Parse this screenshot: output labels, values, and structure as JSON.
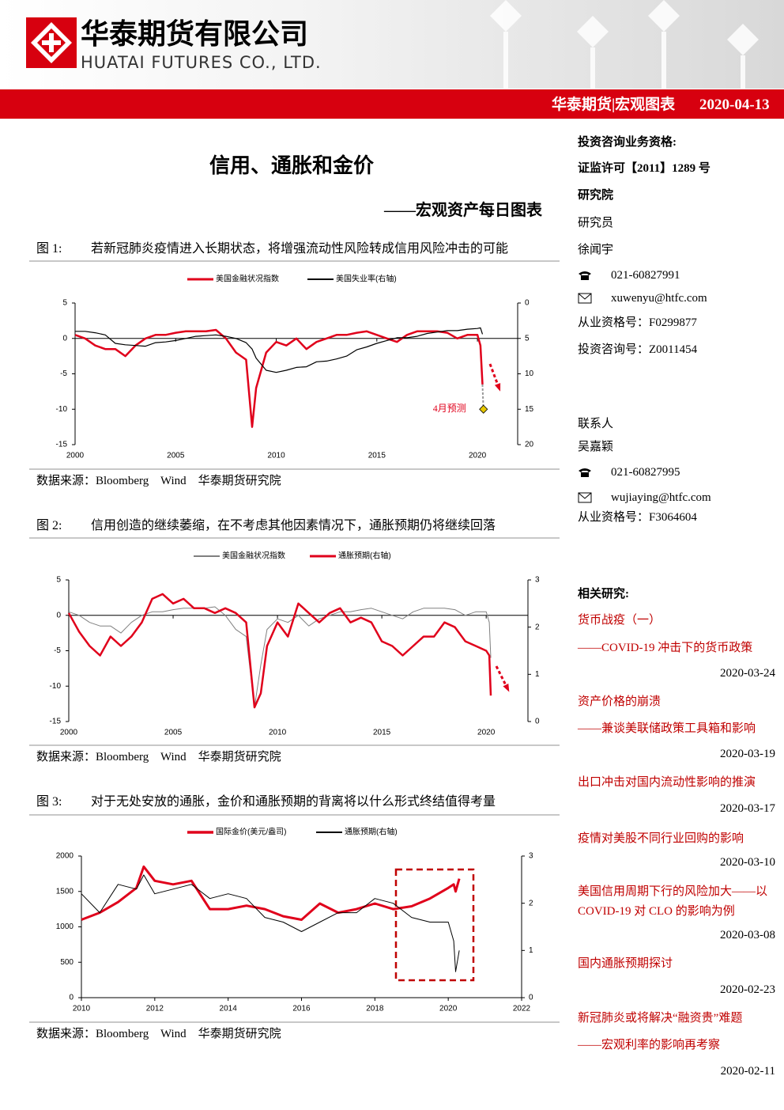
{
  "header": {
    "company_cn": "华泰期货有限公司",
    "company_en": "HUATAI FUTURES CO., LTD.",
    "bar_label": "华泰期货|宏观图表",
    "date": "2020-04-13"
  },
  "title": "信用、通胀和金价",
  "subtitle": "——宏观资产每日图表",
  "figures": [
    {
      "label": "图 1:",
      "caption": "若新冠肺炎疫情进入长期状态，将增强流动性风险转成信用风险冲击的可能",
      "source": "数据来源：Bloomberg    Wind    华泰期货研究院"
    },
    {
      "label": "图 2:",
      "caption": "信用创造的继续萎缩，在不考虑其他因素情况下，通胀预期仍将继续回落",
      "source": "数据来源：Bloomberg    Wind    华泰期货研究院"
    },
    {
      "label": "图 3:",
      "caption": "对于无处安放的通胀，金价和通胀预期的背离将以什么形式终结值得考量",
      "source": "数据来源：Bloomberg    Wind    华泰期货研究院"
    }
  ],
  "sidebar": {
    "qualification": "投资咨询业务资格:",
    "license": "证监许可【2011】1289 号",
    "institute": "研究院",
    "analysts": [
      {
        "role": "研究员",
        "name": "徐闻宇",
        "phone": "021-60827991",
        "email": "xuwenyu@htfc.com",
        "cert": "从业资格号：F0299877",
        "consult": "投资咨询号：Z0011454"
      },
      {
        "role": "联系人",
        "name": "吴嘉颖",
        "phone": "021-60827995",
        "email": "wujiaying@htfc.com",
        "cert": "从业资格号：F3064604"
      }
    ],
    "related_title": "相关研究:",
    "related": [
      {
        "title": "货币战疫（一）",
        "subtitle": "——COVID-19 冲击下的货币政策",
        "date": "2020-03-24"
      },
      {
        "title": "资产价格的崩溃",
        "subtitle": "——兼谈美联储政策工具箱和影响",
        "date": "2020-03-19"
      },
      {
        "title": "出口冲击对国内流动性影响的推演",
        "date": "2020-03-17"
      },
      {
        "title": "疫情对美股不同行业回购的影响",
        "date": "2020-03-10"
      },
      {
        "title": "美国信用周期下行的风险加大——以 COVID-19 对 CLO 的影响为例",
        "date": "2020-03-08"
      },
      {
        "title": "国内通胀预期探讨",
        "date": "2020-02-23"
      },
      {
        "title": "新冠肺炎或将解决“融资贵”难题",
        "subtitle": "——宏观利率的影响再考察",
        "date": "2020-02-11"
      }
    ]
  },
  "chart_data": [
    {
      "type": "line",
      "x": [
        2000,
        2000.5,
        2001,
        2001.5,
        2002,
        2002.5,
        2003,
        2003.5,
        2004,
        2004.5,
        2005,
        2005.5,
        2006,
        2006.5,
        2007,
        2007.5,
        2008,
        2008.5,
        2008.8,
        2009,
        2009.5,
        2010,
        2010.5,
        2011,
        2011.5,
        2012,
        2012.5,
        2013,
        2013.5,
        2014,
        2014.5,
        2015,
        2015.5,
        2016,
        2016.5,
        2017,
        2017.5,
        2018,
        2018.5,
        2019,
        2019.5,
        2020,
        2020.15,
        2020.25
      ],
      "series": [
        {
          "name": "美国金融状况指数",
          "color": "#e0001b",
          "values": [
            0.5,
            0,
            -1,
            -1.5,
            -1.5,
            -2.5,
            -1,
            0,
            0.5,
            0.5,
            0.8,
            1,
            1,
            1,
            1.2,
            0,
            -2,
            -3,
            -12.5,
            -7,
            -2,
            -0.5,
            -1,
            0,
            -1.5,
            -0.5,
            0,
            0.5,
            0.5,
            0.8,
            1,
            0.5,
            0,
            -0.5,
            0.5,
            1,
            1,
            1,
            0.8,
            0,
            0.5,
            0.5,
            -1,
            -6.5
          ]
        },
        {
          "name": "美国失业率(右轴)",
          "color": "#000000",
          "axis": "y2",
          "values": [
            4,
            4,
            4.2,
            4.5,
            5.7,
            5.9,
            6,
            6.1,
            5.6,
            5.5,
            5.3,
            5,
            4.7,
            4.6,
            4.5,
            4.7,
            5,
            5.6,
            6.5,
            7.8,
            9.5,
            9.8,
            9.5,
            9.1,
            9,
            8.3,
            8.2,
            7.9,
            7.5,
            6.6,
            6.2,
            5.7,
            5.3,
            4.9,
            4.9,
            4.7,
            4.3,
            4.1,
            3.9,
            3.9,
            3.7,
            3.6,
            3.5,
            4.4
          ]
        }
      ],
      "forecast": {
        "label": "4月预测",
        "x": 2020.3,
        "value": -10,
        "color": "#e6c700"
      },
      "xlim": [
        2000,
        2022
      ],
      "xticks": [
        2000,
        2005,
        2010,
        2015,
        2020
      ],
      "ylim": [
        -15,
        5
      ],
      "yticks": [
        -15,
        -10,
        -5,
        0,
        5
      ],
      "y2lim": [
        20,
        0
      ],
      "y2ticks": [
        0,
        5,
        10,
        15,
        20
      ]
    },
    {
      "type": "line",
      "x": [
        2000,
        2000.5,
        2001,
        2001.5,
        2002,
        2002.5,
        2003,
        2003.5,
        2004,
        2004.5,
        2005,
        2005.5,
        2006,
        2006.5,
        2007,
        2007.5,
        2008,
        2008.5,
        2008.9,
        2009.2,
        2009.5,
        2010,
        2010.5,
        2011,
        2011.5,
        2012,
        2012.5,
        2013,
        2013.5,
        2014,
        2014.5,
        2015,
        2015.5,
        2016,
        2016.5,
        2017,
        2017.5,
        2018,
        2018.5,
        2019,
        2019.5,
        2020,
        2020.15,
        2020.22
      ],
      "series": [
        {
          "name": "美国金融状况指数",
          "color": "#808080",
          "values": [
            0.5,
            0,
            -1,
            -1.5,
            -1.5,
            -2.5,
            -1,
            0,
            0.5,
            0.5,
            0.8,
            1,
            1,
            1,
            1.2,
            0,
            -2,
            -3,
            -13,
            -7,
            -2,
            -0.5,
            -1,
            0,
            -1.5,
            -0.5,
            0,
            0.5,
            0.5,
            0.8,
            1,
            0.5,
            0,
            -0.5,
            0.5,
            1,
            1,
            1,
            0.8,
            0,
            0.5,
            0.5,
            -1,
            -6
          ]
        },
        {
          "name": "通胀预期(右轴)",
          "color": "#e0001b",
          "axis": "y2",
          "values": [
            2.3,
            1.9,
            1.6,
            1.4,
            1.8,
            1.6,
            1.8,
            2.1,
            2.6,
            2.7,
            2.5,
            2.6,
            2.4,
            2.4,
            2.3,
            2.4,
            2.3,
            2.1,
            0.3,
            0.6,
            1.6,
            2.1,
            1.8,
            2.5,
            2.3,
            2.1,
            2.3,
            2.4,
            2.1,
            2.2,
            2.1,
            1.7,
            1.6,
            1.4,
            1.6,
            1.8,
            1.8,
            2.1,
            2.0,
            1.7,
            1.6,
            1.5,
            1.4,
            0.55
          ]
        }
      ],
      "xlim": [
        2000,
        2022
      ],
      "xticks": [
        2000,
        2005,
        2010,
        2015,
        2020
      ],
      "ylim": [
        -15,
        5
      ],
      "yticks": [
        -15,
        -10,
        -5,
        0,
        5
      ],
      "y2lim": [
        0,
        3
      ],
      "y2ticks": [
        0,
        1,
        2,
        3
      ]
    },
    {
      "type": "line",
      "x": [
        2010,
        2010.5,
        2011,
        2011.5,
        2011.7,
        2012,
        2012.5,
        2013,
        2013.5,
        2014,
        2014.5,
        2015,
        2015.5,
        2016,
        2016.5,
        2017,
        2017.5,
        2018,
        2018.5,
        2019,
        2019.5,
        2020,
        2020.15,
        2020.2,
        2020.3
      ],
      "series": [
        {
          "name": "国际金价(美元/盎司)",
          "color": "#e0001b",
          "values": [
            1100,
            1200,
            1350,
            1550,
            1850,
            1650,
            1600,
            1650,
            1250,
            1250,
            1300,
            1250,
            1150,
            1100,
            1330,
            1200,
            1250,
            1330,
            1250,
            1290,
            1400,
            1550,
            1600,
            1500,
            1680
          ]
        },
        {
          "name": "通胀预期(右轴)",
          "color": "#000000",
          "axis": "y2",
          "values": [
            2.2,
            1.8,
            2.4,
            2.3,
            2.6,
            2.2,
            2.3,
            2.4,
            2.1,
            2.2,
            2.1,
            1.7,
            1.6,
            1.4,
            1.6,
            1.8,
            1.8,
            2.1,
            2.0,
            1.7,
            1.6,
            1.6,
            1.2,
            0.55,
            1.0
          ]
        }
      ],
      "xlim": [
        2010,
        2022
      ],
      "xticks": [
        2010,
        2012,
        2014,
        2016,
        2018,
        2020,
        2022
      ],
      "ylim": [
        0,
        2000
      ],
      "yticks": [
        0,
        500,
        1000,
        1500,
        2000
      ],
      "y2lim": [
        0,
        3
      ],
      "y2ticks": [
        0,
        1,
        2,
        3
      ]
    }
  ]
}
